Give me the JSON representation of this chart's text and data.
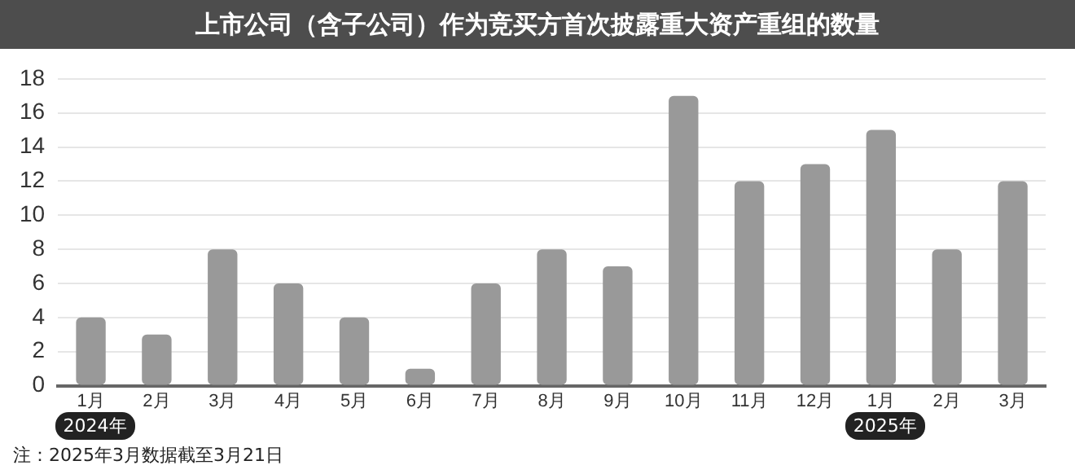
{
  "chart_data": {
    "type": "bar",
    "title": "上市公司（含子公司）作为竞买方首次披露重大资产重组的数量",
    "categories": [
      "1月",
      "2月",
      "3月",
      "4月",
      "5月",
      "6月",
      "7月",
      "8月",
      "9月",
      "10月",
      "11月",
      "12月",
      "1月",
      "2月",
      "3月"
    ],
    "values": [
      4,
      3,
      8,
      6,
      4,
      1,
      6,
      8,
      7,
      17,
      12,
      13,
      15,
      8,
      12
    ],
    "color": "#999999",
    "ylim": [
      0,
      18
    ],
    "yticks": [
      0,
      2,
      4,
      6,
      8,
      10,
      12,
      14,
      16,
      18
    ],
    "grid": "y",
    "legend": false,
    "annotations": [
      "2024年",
      "2025年",
      "注：2025年3月数据截至3月21日"
    ]
  }
}
